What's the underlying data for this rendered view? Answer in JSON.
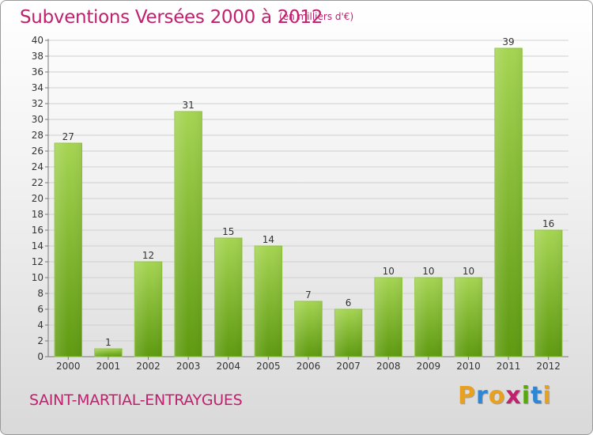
{
  "header": {
    "title": "Subventions Versées 2000 à 2012",
    "subtitle": "(en milliers d'€)"
  },
  "footer": {
    "place": "SAINT-MARTIAL-ENTRAYGUES",
    "logo_letters": [
      {
        "ch": "P",
        "color": "#e8a020"
      },
      {
        "ch": "r",
        "color": "#2e86d6"
      },
      {
        "ch": "o",
        "color": "#e8a020"
      },
      {
        "ch": "x",
        "color": "#c0206e"
      },
      {
        "ch": "i",
        "color": "#58a80c"
      },
      {
        "ch": "t",
        "color": "#2e86d6"
      },
      {
        "ch": "i",
        "color": "#e8a020"
      }
    ]
  },
  "colors": {
    "bar_light": "#a5d452",
    "bar_dark": "#5e9a10",
    "text_accent": "#c0206e",
    "axis_text": "#333333",
    "gridline": "#cfcfcf"
  },
  "chart_data": {
    "type": "bar",
    "categories": [
      "2000",
      "2001",
      "2002",
      "2003",
      "2004",
      "2005",
      "2006",
      "2007",
      "2008",
      "2009",
      "2010",
      "2011",
      "2012"
    ],
    "values": [
      27,
      1,
      12,
      31,
      15,
      14,
      7,
      6,
      10,
      10,
      10,
      39,
      16
    ],
    "title": "Subventions Versées 2000 à 2012",
    "subtitle": "(en milliers d'€)",
    "ylim": [
      0,
      40
    ],
    "yticks": [
      0,
      2,
      4,
      6,
      8,
      10,
      12,
      14,
      16,
      18,
      20,
      22,
      24,
      26,
      28,
      30,
      32,
      34,
      36,
      38,
      40
    ],
    "grid": true,
    "data_labels": true
  }
}
